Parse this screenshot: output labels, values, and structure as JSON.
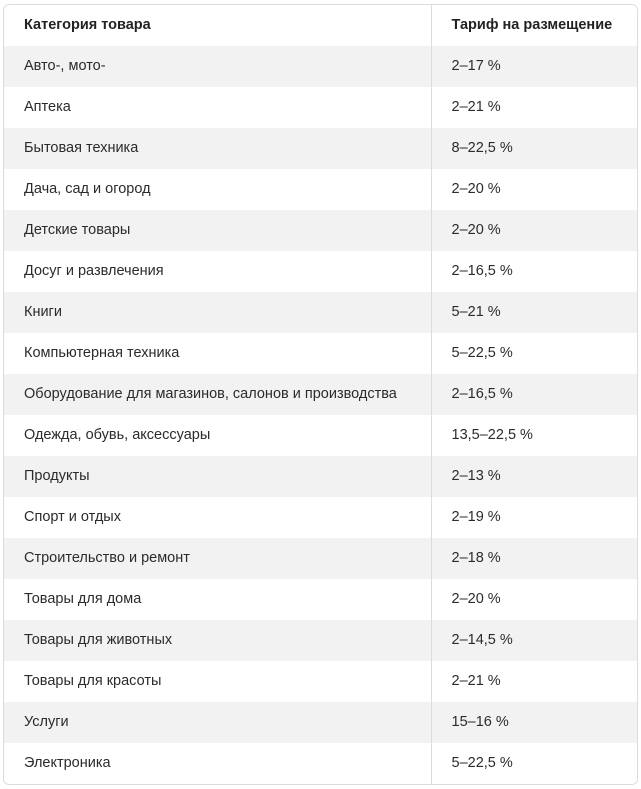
{
  "table": {
    "headers": {
      "category": "Категория товара",
      "tariff": "Тариф на размещение"
    },
    "rows": [
      {
        "category": "Авто-, мото-",
        "tariff": "2–17 %"
      },
      {
        "category": "Аптека",
        "tariff": "2–21 %"
      },
      {
        "category": "Бытовая техника",
        "tariff": "8–22,5 %"
      },
      {
        "category": "Дача, сад и огород",
        "tariff": "2–20 %"
      },
      {
        "category": "Детские товары",
        "tariff": "2–20 %"
      },
      {
        "category": "Досуг и развлечения",
        "tariff": "2–16,5 %"
      },
      {
        "category": "Книги",
        "tariff": "5–21 %"
      },
      {
        "category": "Компьютерная техника",
        "tariff": "5–22,5 %"
      },
      {
        "category": "Оборудование для магазинов, салонов и производства",
        "tariff": "2–16,5 %"
      },
      {
        "category": "Одежда, обувь, аксессуары",
        "tariff": "13,5–22,5 %"
      },
      {
        "category": "Продукты",
        "tariff": "2–13 %"
      },
      {
        "category": "Спорт и отдых",
        "tariff": "2–19 %"
      },
      {
        "category": "Строительство и ремонт",
        "tariff": "2–18 %"
      },
      {
        "category": "Товары для дома",
        "tariff": "2–20 %"
      },
      {
        "category": "Товары для животных",
        "tariff": "2–14,5 %"
      },
      {
        "category": "Товары для красоты",
        "tariff": "2–21 %"
      },
      {
        "category": "Услуги",
        "tariff": "15–16 %"
      },
      {
        "category": "Электроника",
        "tariff": "5–22,5 %"
      }
    ]
  }
}
